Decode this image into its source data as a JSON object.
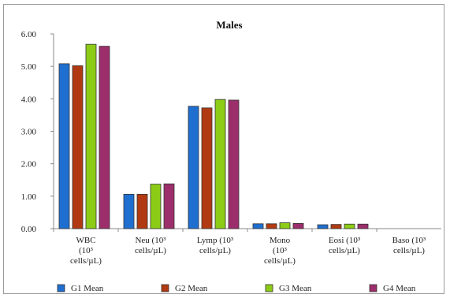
{
  "chart_data": {
    "type": "bar",
    "title": "Males",
    "xlabel": "",
    "ylabel": "",
    "ylim": [
      0,
      6
    ],
    "yticks": [
      "0.00",
      "1.00",
      "2.00",
      "3.00",
      "4.00",
      "5.00",
      "6.00"
    ],
    "grid": false,
    "legend_position": "bottom",
    "categories": [
      [
        "WBC",
        "(10³",
        "cells/µL)"
      ],
      [
        "Neu (10³",
        "cells/µL)"
      ],
      [
        "Lymp (10³",
        "cells/µL)"
      ],
      [
        "Mono",
        "(10³",
        "cells/µL)"
      ],
      [
        "Eosi (10³",
        "cells/µL)"
      ],
      [
        "Baso (10³",
        "cells/µL)"
      ]
    ],
    "series": [
      {
        "name": "G1 Mean",
        "color": "#1f6fd0",
        "values": [
          5.08,
          1.06,
          3.77,
          0.15,
          0.12,
          0.0
        ]
      },
      {
        "name": "G2 Mean",
        "color": "#b23a12",
        "values": [
          5.02,
          1.06,
          3.72,
          0.15,
          0.13,
          0.0
        ]
      },
      {
        "name": "G3 Mean",
        "color": "#8ccc16",
        "values": [
          5.68,
          1.37,
          3.98,
          0.18,
          0.14,
          0.0
        ]
      },
      {
        "name": "G4 Mean",
        "color": "#9c2e6c",
        "values": [
          5.62,
          1.38,
          3.96,
          0.16,
          0.14,
          0.0
        ]
      }
    ]
  }
}
